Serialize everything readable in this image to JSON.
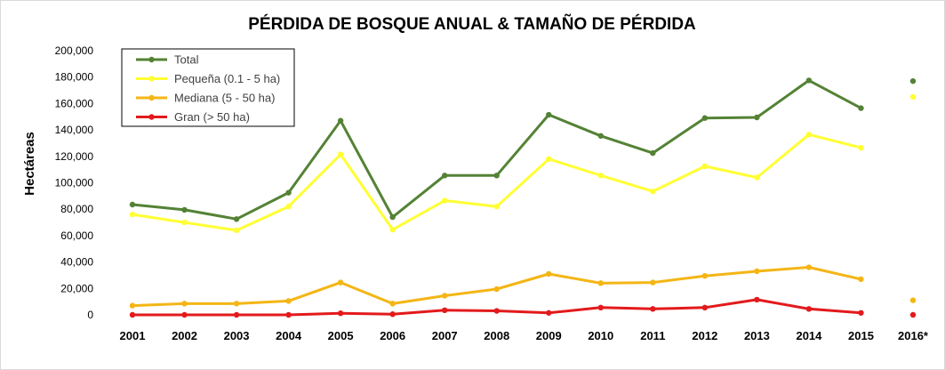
{
  "chart_data": {
    "type": "line",
    "title": "PÉRDIDA DE BOSQUE ANUAL & TAMAÑO DE PÉRDIDA",
    "ylabel": "Hectáreas",
    "xlabel": "",
    "categories": [
      "2001",
      "2002",
      "2003",
      "2004",
      "2005",
      "2006",
      "2007",
      "2008",
      "2009",
      "2010",
      "2011",
      "2012",
      "2013",
      "2014",
      "2015",
      "2016*"
    ],
    "ylim": [
      0,
      200000
    ],
    "yticks": [
      0,
      20000,
      40000,
      60000,
      80000,
      100000,
      120000,
      140000,
      160000,
      180000,
      200000
    ],
    "ytick_labels": [
      "0",
      "20,000",
      "40,000",
      "60,000",
      "80,000",
      "100,000",
      "120,000",
      "140,000",
      "160,000",
      "180,000",
      "200,000"
    ],
    "grid": false,
    "legend_position": "top-left",
    "series": [
      {
        "name": "Total",
        "color": "#548235",
        "values": [
          83500,
          79500,
          72500,
          92500,
          147000,
          74000,
          105500,
          105500,
          151500,
          135500,
          122500,
          149000,
          149500,
          177500,
          156500,
          177000
        ],
        "connected_until": 14
      },
      {
        "name": "Pequeña (0.1 - 5 ha)",
        "color": "#ffff33",
        "values": [
          76000,
          70000,
          64000,
          82000,
          121500,
          64500,
          86500,
          82000,
          118000,
          105500,
          93500,
          112500,
          104000,
          136500,
          126500,
          165000
        ],
        "connected_until": 14
      },
      {
        "name": "Mediana (5 - 50 ha)",
        "color": "#f4b515",
        "values": [
          7000,
          8500,
          8500,
          10500,
          24500,
          8500,
          14500,
          19500,
          31000,
          24000,
          24500,
          29500,
          33000,
          36000,
          27000,
          11000
        ],
        "connected_until": 14
      },
      {
        "name": "Gran (> 50 ha)",
        "color": "#e31a1c",
        "values": [
          0,
          0,
          0,
          0,
          1200,
          500,
          3500,
          3000,
          1500,
          5500,
          4500,
          5500,
          11500,
          4500,
          1500,
          0
        ],
        "connected_until": 14
      }
    ]
  }
}
